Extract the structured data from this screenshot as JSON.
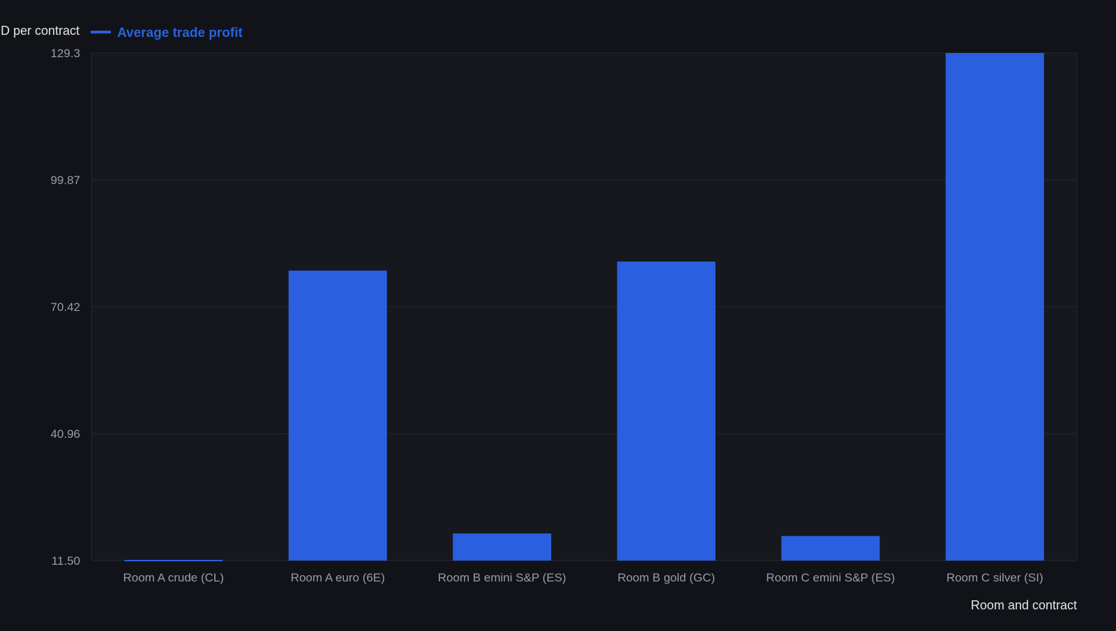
{
  "chart_data": {
    "type": "bar",
    "ylabel": "USD per contract",
    "xlabel": "Room and contract",
    "legend": {
      "position": "top-left",
      "entries": [
        "Average trade profit"
      ]
    },
    "ylim": [
      11.5,
      129.3
    ],
    "yticks": [
      "11.50",
      "40.96",
      "70.42",
      "99.87",
      "129.3"
    ],
    "ytick_values": [
      11.5,
      40.96,
      70.42,
      99.87,
      129.3
    ],
    "grid": true,
    "categories": [
      "Room A crude (CL)",
      "Room A euro (6E)",
      "Room B emini S&P (ES)",
      "Room B gold (GC)",
      "Room C emini S&P (ES)",
      "Room C silver (SI)"
    ],
    "series": [
      {
        "name": "Average trade profit",
        "values": [
          11.2,
          78.8,
          17.8,
          80.9,
          17.2,
          129.3
        ]
      }
    ],
    "colors": {
      "bar": "#2a5fe0",
      "background": "#111318",
      "plot_background": "#16181e",
      "grid": "#262930",
      "tick_text": "#9a9da4",
      "label_text": "#e6e6e6"
    }
  }
}
